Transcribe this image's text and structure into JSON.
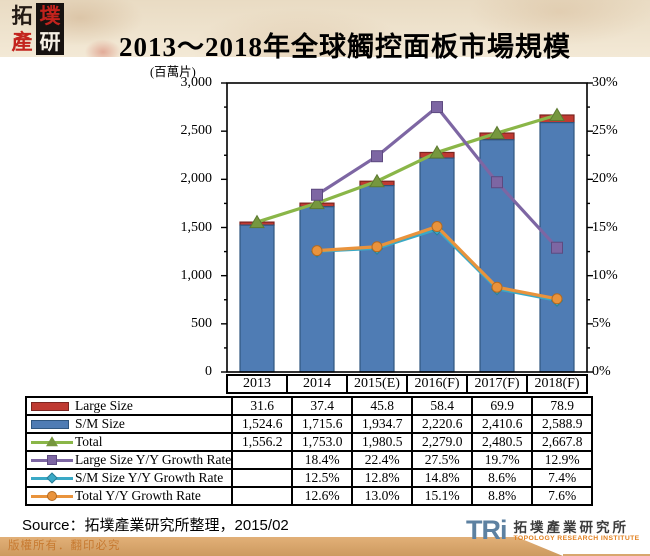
{
  "header": {
    "logo_chars": [
      "拓",
      "墣",
      "產",
      "研"
    ],
    "title": "2013～2018年全球觸控面板市場規模"
  },
  "chart_data": {
    "type": "combo-stacked-bar-line",
    "title": "2013～2018年全球觸控面板市場規模",
    "unit_label": "(百萬片)",
    "categories": [
      "2013",
      "2014",
      "2015(E)",
      "2016(F)",
      "2017(F)",
      "2018(F)"
    ],
    "left_axis": {
      "min": 0,
      "max": 3000,
      "major_step": 500,
      "minor_step": 250,
      "tick_labels": [
        "3,000",
        "2,500",
        "2,000",
        "1,500",
        "1,000",
        "500",
        "0"
      ]
    },
    "right_axis": {
      "min": 0,
      "max": 30,
      "major_step": 5,
      "minor_step": 2.5,
      "tick_labels": [
        "30%",
        "25%",
        "20%",
        "15%",
        "10%",
        "5%",
        "0%"
      ]
    },
    "grid": "off",
    "legend_position": "table-left-column",
    "bar_series": [
      {
        "name": "S/M Size",
        "color": "#4f7cb4",
        "border": "#2f567f",
        "values": [
          1524.6,
          1715.6,
          1934.7,
          2220.6,
          2410.6,
          2588.9
        ]
      },
      {
        "name": "Large Size",
        "color": "#bf3a32",
        "border": "#7c2420",
        "values": [
          31.6,
          37.4,
          45.8,
          58.4,
          69.9,
          78.9
        ]
      }
    ],
    "line_series": [
      {
        "name": "Total",
        "axis": "left",
        "color": "#8ab648",
        "width": 3.2,
        "marker": "triangle",
        "marker_fill": "#76973e",
        "marker_stroke": "#5c7a30",
        "values": [
          1556.2,
          1753.0,
          1980.5,
          2279.0,
          2480.5,
          2667.8
        ]
      },
      {
        "name": "Large Size Y/Y Growth Rate",
        "axis": "right",
        "color": "#7d66a3",
        "width": 3.2,
        "marker": "square",
        "marker_fill": "#7d66a3",
        "marker_stroke": "#5d4a80",
        "values": [
          null,
          18.4,
          22.4,
          27.5,
          19.7,
          12.9
        ]
      },
      {
        "name": "S/M Size Y/Y Growth Rate",
        "axis": "right",
        "color": "#3aa9c6",
        "width": 2.4,
        "marker": "diamond",
        "marker_fill": "#3aa9c6",
        "marker_stroke": "#2a7e96",
        "values": [
          null,
          12.5,
          12.8,
          14.8,
          8.6,
          7.4
        ]
      },
      {
        "name": "Total Y/Y Growth Rate",
        "axis": "right",
        "color": "#e9933c",
        "width": 3.2,
        "marker": "circle",
        "marker_fill": "#e9933c",
        "marker_stroke": "#b46a20",
        "values": [
          null,
          12.6,
          13.0,
          15.1,
          8.8,
          7.6
        ]
      }
    ]
  },
  "table": {
    "rows": [
      {
        "label": "Large Size",
        "swatch": "bar-red",
        "cells": [
          "31.6",
          "37.4",
          "45.8",
          "58.4",
          "69.9",
          "78.9"
        ]
      },
      {
        "label": "S/M Size",
        "swatch": "bar-blue",
        "cells": [
          "1,524.6",
          "1,715.6",
          "1,934.7",
          "2,220.6",
          "2,410.6",
          "2,588.9"
        ]
      },
      {
        "label": "Total",
        "swatch": "line-green-triangle",
        "cells": [
          "1,556.2",
          "1,753.0",
          "1,980.5",
          "2,279.0",
          "2,480.5",
          "2,667.8"
        ]
      },
      {
        "label": "Large Size Y/Y Growth Rate",
        "swatch": "line-purple-square",
        "cells": [
          "",
          "18.4%",
          "22.4%",
          "27.5%",
          "19.7%",
          "12.9%"
        ]
      },
      {
        "label": "S/M Size Y/Y Growth Rate",
        "swatch": "line-teal-diamond",
        "cells": [
          "",
          "12.5%",
          "12.8%",
          "14.8%",
          "8.6%",
          "7.4%"
        ]
      },
      {
        "label": "Total Y/Y Growth Rate",
        "swatch": "line-orange-circle",
        "cells": [
          "",
          "12.6%",
          "13.0%",
          "15.1%",
          "8.8%",
          "7.6%"
        ]
      }
    ]
  },
  "footer": {
    "source": "Source：拓墣產業研究所整理，2015/02",
    "copyright": "版權所有．翻印必究",
    "tri_logo": {
      "mark": "TRi",
      "cjk": "拓墣產業研究所",
      "en": "TOPOLOGY RESEARCH INSTITUTE"
    }
  }
}
